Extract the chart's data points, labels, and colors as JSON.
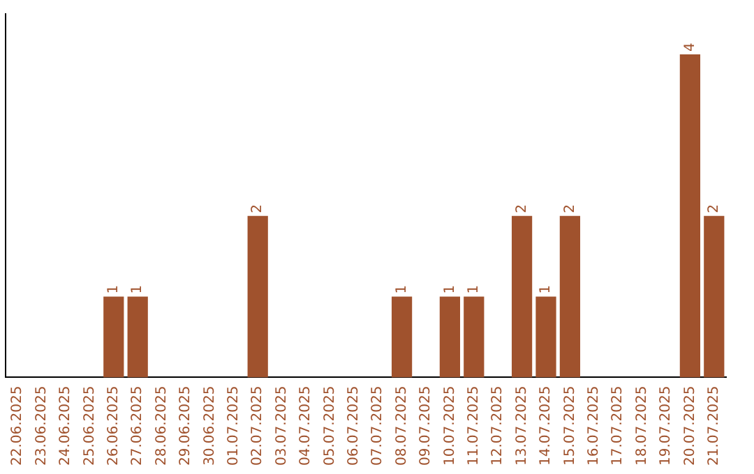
{
  "chart_data": {
    "type": "bar",
    "categories": [
      "22.06.2025",
      "23.06.2025",
      "24.06.2025",
      "25.06.2025",
      "26.06.2025",
      "27.06.2025",
      "28.06.2025",
      "29.06.2025",
      "30.06.2025",
      "01.07.2025",
      "02.07.2025",
      "03.07.2025",
      "04.07.2025",
      "05.07.2025",
      "06.07.2025",
      "07.07.2025",
      "08.07.2025",
      "09.07.2025",
      "10.07.2025",
      "11.07.2025",
      "12.07.2025",
      "13.07.2025",
      "14.07.2025",
      "15.07.2025",
      "16.07.2025",
      "17.07.2025",
      "18.07.2025",
      "19.07.2025",
      "20.07.2025",
      "21.07.2025"
    ],
    "values": [
      0,
      0,
      0,
      0,
      1,
      1,
      0,
      0,
      0,
      0,
      2,
      0,
      0,
      0,
      0,
      0,
      1,
      0,
      1,
      1,
      0,
      2,
      1,
      2,
      0,
      0,
      0,
      0,
      4,
      2
    ],
    "value_labels": [
      null,
      null,
      null,
      null,
      "1",
      "1",
      null,
      null,
      null,
      null,
      "2",
      null,
      null,
      null,
      null,
      null,
      "1",
      null,
      "1",
      "1",
      null,
      "2",
      "1",
      "2",
      null,
      null,
      null,
      null,
      "4",
      "2"
    ],
    "color": "#a0522d",
    "grid": false,
    "legend": false
  }
}
